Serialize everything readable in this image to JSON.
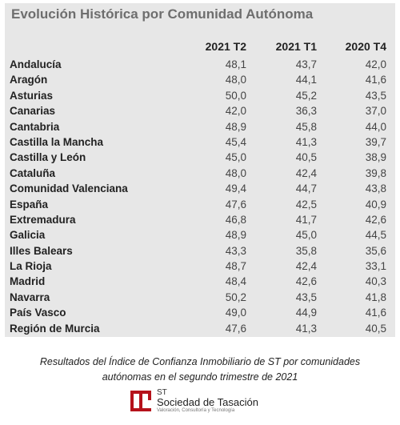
{
  "title": "Evolución Histórica por Comunidad Autónoma",
  "columns": [
    "2021 T2",
    "2021 T1",
    "2020 T4"
  ],
  "rows": [
    {
      "name": "Andalucía",
      "values": [
        "48,1",
        "43,7",
        "42,0"
      ]
    },
    {
      "name": "Aragón",
      "values": [
        "48,0",
        "44,1",
        "41,6"
      ]
    },
    {
      "name": "Asturias",
      "values": [
        "50,0",
        "45,2",
        "43,5"
      ]
    },
    {
      "name": "Canarias",
      "values": [
        "42,0",
        "36,3",
        "37,0"
      ]
    },
    {
      "name": "Cantabria",
      "values": [
        "48,9",
        "45,8",
        "44,0"
      ]
    },
    {
      "name": "Castilla la Mancha",
      "values": [
        "45,4",
        "41,3",
        "39,7"
      ]
    },
    {
      "name": "Castilla y León",
      "values": [
        "45,0",
        "40,5",
        "38,9"
      ]
    },
    {
      "name": "Cataluña",
      "values": [
        "48,0",
        "42,4",
        "39,8"
      ]
    },
    {
      "name": "Comunidad Valenciana",
      "values": [
        "49,4",
        "44,7",
        "43,8"
      ]
    },
    {
      "name": "España",
      "values": [
        "47,6",
        "42,5",
        "40,9"
      ]
    },
    {
      "name": "Extremadura",
      "values": [
        "46,8",
        "41,7",
        "42,6"
      ]
    },
    {
      "name": "Galicia",
      "values": [
        "48,9",
        "45,0",
        "44,5"
      ]
    },
    {
      "name": "Illes Balears",
      "values": [
        "43,3",
        "35,8",
        "35,6"
      ]
    },
    {
      "name": "La Rioja",
      "values": [
        "48,7",
        "42,4",
        "33,1"
      ]
    },
    {
      "name": "Madrid",
      "values": [
        "48,4",
        "42,6",
        "40,3"
      ]
    },
    {
      "name": "Navarra",
      "values": [
        "50,2",
        "43,5",
        "41,8"
      ]
    },
    {
      "name": "País Vasco",
      "values": [
        "49,0",
        "44,9",
        "41,6"
      ]
    },
    {
      "name": "Región de Murcia",
      "values": [
        "47,6",
        "41,3",
        "40,5"
      ]
    }
  ],
  "caption_line1": "Resultados del Índice de Confianza Inmobiliario de ST por comunidades",
  "caption_line2": "autónomas en el segundo trimestre de 2021",
  "logo": {
    "abbr": "ST",
    "name": "Sociedad de Tasación",
    "tagline": "Valoración, Consultoría y Tecnología",
    "color": "#b5121b"
  }
}
